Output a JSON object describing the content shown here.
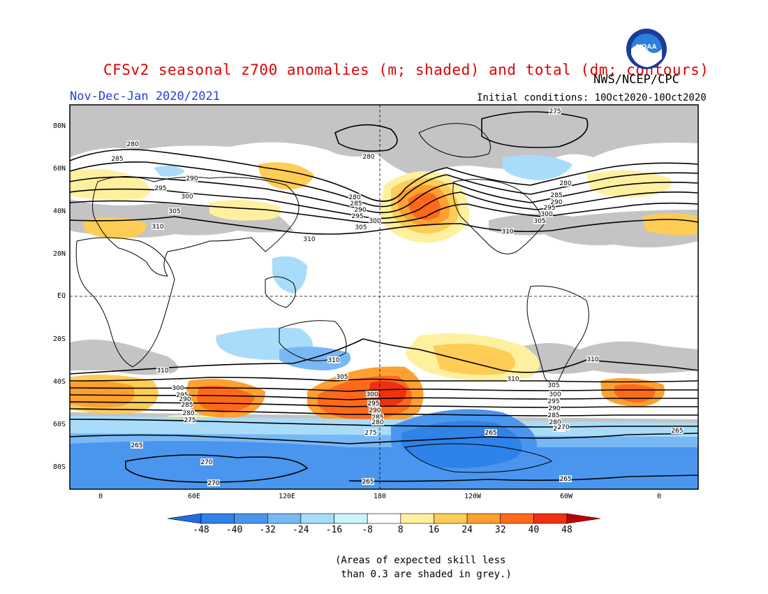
{
  "title": "CFSv2 seasonal z700 anomalies (m; shaded) and total (dm; contours)",
  "subtitle": "Nov-Dec-Jan 2020/2021",
  "agency": "NWS/NCEP/CPC",
  "initial_conditions": "Initial conditions: 10Oct2020-10Oct2020",
  "logo_text": "NOAA",
  "note_line1": "(Areas of expected skill less",
  "note_line2": " than 0.3 are shaded in grey.)",
  "lat_labels": [
    "80N",
    "60N",
    "40N",
    "20N",
    "EQ",
    "20S",
    "40S",
    "60S",
    "80S"
  ],
  "lon_labels": [
    "0",
    "60E",
    "120E",
    "180",
    "120W",
    "60W",
    "0"
  ],
  "colorbar": {
    "labels": [
      "-48",
      "-40",
      "-32",
      "-24",
      "-16",
      "-8",
      "8",
      "16",
      "24",
      "32",
      "40",
      "48"
    ],
    "colors": [
      "#1e6ee0",
      "#2e82e8",
      "#4a96ee",
      "#78b8f4",
      "#a8dcfa",
      "#ccf2fc",
      "#ffffff",
      "#fff0a0",
      "#ffcc55",
      "#ffa030",
      "#ff6a1a",
      "#f03010",
      "#c00000"
    ]
  },
  "contour_labels": [
    "275",
    "280",
    "285",
    "290",
    "295",
    "300",
    "305",
    "310",
    "265",
    "270"
  ]
}
